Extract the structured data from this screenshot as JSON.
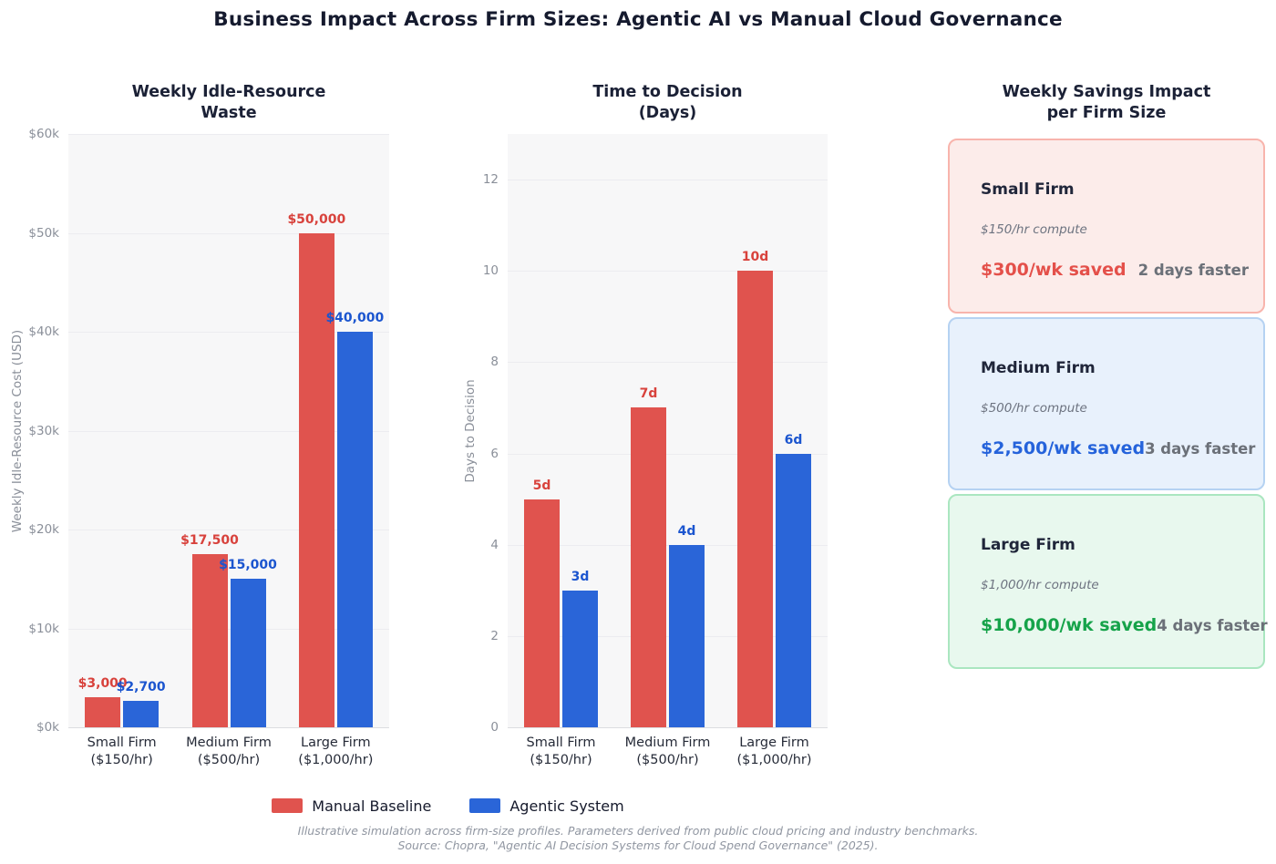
{
  "title": "Business Impact Across Firm Sizes: Agentic AI vs Manual Cloud Governance",
  "chart_data": [
    {
      "type": "bar",
      "title": "Weekly Idle-Resource\nWaste",
      "ylabel": "Weekly Idle-Resource Cost (USD)",
      "categories": [
        "Small Firm\n($150/hr)",
        "Medium Firm\n($500/hr)",
        "Large Firm\n($1,000/hr)"
      ],
      "series": [
        {
          "name": "Manual Baseline",
          "bar_color": "#e0534e",
          "label_color": "#d8423c",
          "values": [
            3000,
            17500,
            50000
          ],
          "labels": [
            "$3,000",
            "$17,500",
            "$50,000"
          ]
        },
        {
          "name": "Agentic System",
          "bar_color": "#2a65d8",
          "label_color": "#1b55cf",
          "values": [
            2700,
            15000,
            40000
          ],
          "labels": [
            "$2,700",
            "$15,000",
            "$40,000"
          ]
        }
      ],
      "ylim": [
        0,
        60000
      ],
      "grid": true,
      "yticks": [
        {
          "v": 0,
          "label": "$0k"
        },
        {
          "v": 10000,
          "label": "$10k"
        },
        {
          "v": 20000,
          "label": "$20k"
        },
        {
          "v": 30000,
          "label": "$30k"
        },
        {
          "v": 40000,
          "label": "$40k"
        },
        {
          "v": 50000,
          "label": "$50k"
        },
        {
          "v": 60000,
          "label": "$60k"
        }
      ]
    },
    {
      "type": "bar",
      "title": "Time to Decision\n(Days)",
      "ylabel": "Days to Decision",
      "categories": [
        "Small Firm\n($150/hr)",
        "Medium Firm\n($500/hr)",
        "Large Firm\n($1,000/hr)"
      ],
      "series": [
        {
          "name": "Manual Baseline",
          "bar_color": "#e0534e",
          "label_color": "#d8423c",
          "values": [
            5,
            7,
            10
          ],
          "labels": [
            "5d",
            "7d",
            "10d"
          ]
        },
        {
          "name": "Agentic System",
          "bar_color": "#2a65d8",
          "label_color": "#1b55cf",
          "values": [
            3,
            4,
            6
          ],
          "labels": [
            "3d",
            "4d",
            "6d"
          ]
        }
      ],
      "ylim": [
        0,
        13
      ],
      "grid": true,
      "yticks": [
        {
          "v": 0,
          "label": "0"
        },
        {
          "v": 2,
          "label": "2"
        },
        {
          "v": 4,
          "label": "4"
        },
        {
          "v": 6,
          "label": "6"
        },
        {
          "v": 8,
          "label": "8"
        },
        {
          "v": 10,
          "label": "10"
        },
        {
          "v": 12,
          "label": "12"
        }
      ]
    }
  ],
  "savings_panel": {
    "title": "Weekly Savings Impact\nper Firm Size",
    "cards": [
      {
        "heading": "Small Firm",
        "subtitle": "$150/hr compute",
        "saved": "$300/wk saved",
        "faster": "2 days faster",
        "accent": "#e4504a",
        "bg": "#fcecea",
        "border": "#f8b4ac"
      },
      {
        "heading": "Medium Firm",
        "subtitle": "$500/hr compute",
        "saved": "$2,500/wk saved",
        "faster": "3 days faster",
        "accent": "#2563db",
        "bg": "#e8f1fc",
        "border": "#b5d2f2"
      },
      {
        "heading": "Large Firm",
        "subtitle": "$1,000/hr compute",
        "saved": "$10,000/wk saved",
        "faster": "4 days faster",
        "accent": "#16a34a",
        "bg": "#e8f8ee",
        "border": "#aae6c0"
      }
    ]
  },
  "legend": {
    "items": [
      {
        "label": "Manual Baseline",
        "color": "#e0534e"
      },
      {
        "label": "Agentic System",
        "color": "#2a65d8"
      }
    ]
  },
  "footer": {
    "line1": "Illustrative simulation across firm-size profiles. Parameters derived from public cloud pricing and industry benchmarks.",
    "line2": "Source: Chopra, \"Agentic AI Decision Systems for Cloud Spend Governance\" (2025)."
  }
}
